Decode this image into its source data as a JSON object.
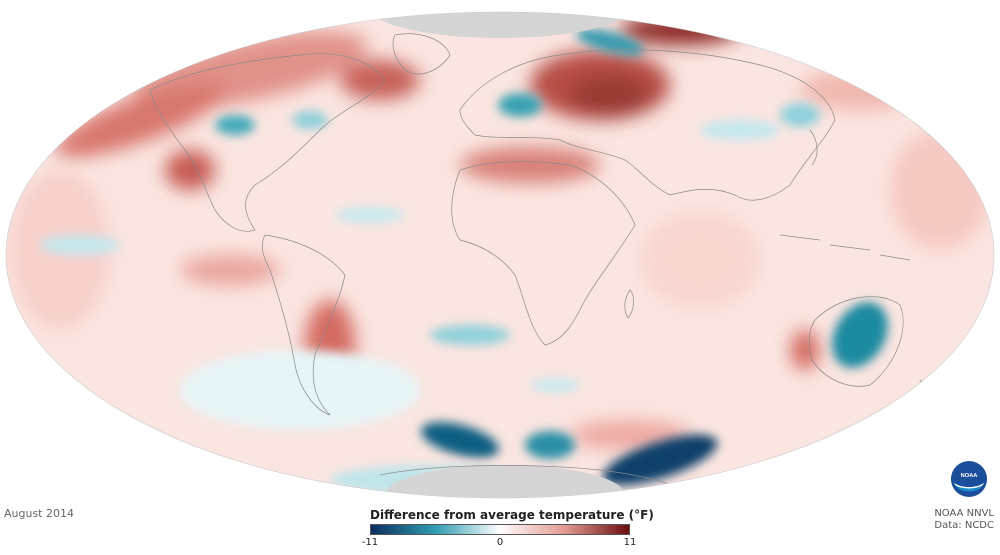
{
  "date_label": "August 2014",
  "legend": {
    "title": "Difference from average temperature (°F)",
    "min_label": "-11",
    "mid_label": "0",
    "max_label": "11",
    "colors": [
      "#0b2e5e",
      "#2f9db2",
      "#ffffff",
      "#e39a91",
      "#6a0e0e"
    ]
  },
  "credits": {
    "line1": "NOAA NNVL",
    "line2": "Data: NCDC"
  },
  "logo_text": "NOAA",
  "map_colors": {
    "base": "#fbe2dd",
    "warm": "#c7554c",
    "warm_light": "#f0b3ab",
    "cool": "#3aa3b4",
    "cool_light": "#bfe6ec",
    "cold": "#0c3566",
    "no_data": "#d5d5d5",
    "border": "#8a8a8a"
  }
}
